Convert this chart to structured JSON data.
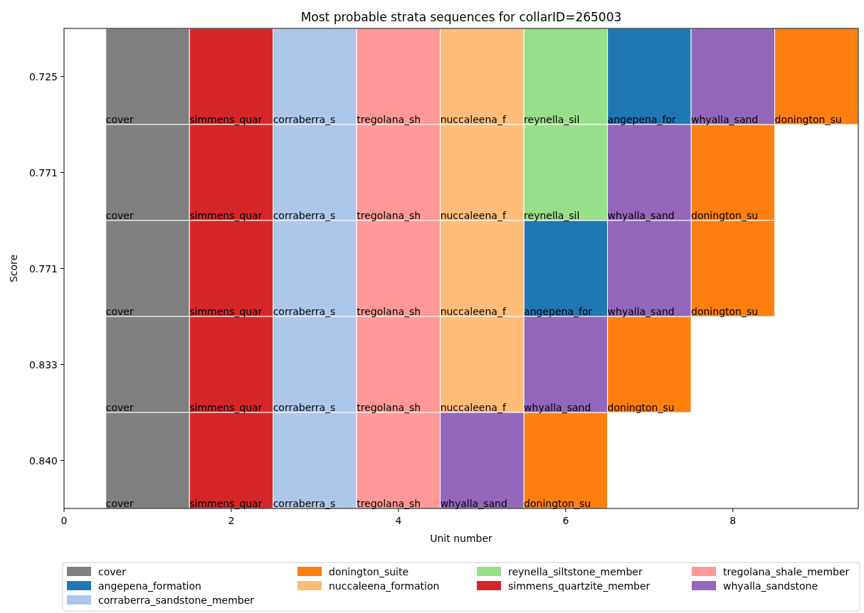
{
  "chart_data": {
    "type": "bar",
    "orientation": "horizontal",
    "title": "Most probable strata sequences for collarID=265003",
    "xlabel": "Unit number",
    "ylabel": "Score",
    "categories": [
      "0.725",
      "0.771",
      "0.771",
      "0.833",
      "0.840"
    ],
    "xlim": [
      0,
      9.5
    ],
    "xticks": [
      0,
      2,
      4,
      6,
      8
    ],
    "series": [
      {
        "name": "cover",
        "color": "#7f7f7f",
        "values": [
          1,
          1,
          1,
          1,
          1
        ],
        "base": [
          0.5,
          0.5,
          0.5,
          0.5,
          0.5
        ],
        "value_labels": [
          "cover",
          "cover",
          "cover",
          "cover",
          "cover"
        ]
      },
      {
        "name": "angepena_formation",
        "color": "#1f77b4",
        "values": [
          1,
          null,
          1,
          null,
          null
        ],
        "base": [
          6.5,
          null,
          5.5,
          null,
          null
        ],
        "value_labels": [
          "angepena_for",
          null,
          "angepena_for",
          null,
          null
        ]
      },
      {
        "name": "corraberra_sandstone_member",
        "color": "#aec7e8",
        "values": [
          1,
          1,
          1,
          1,
          1
        ],
        "base": [
          2.5,
          2.5,
          2.5,
          2.5,
          2.5
        ],
        "value_labels": [
          "corraberra_s",
          "corraberra_s",
          "corraberra_s",
          "corraberra_s",
          "corraberra_s"
        ]
      },
      {
        "name": "donington_suite",
        "color": "#ff7f0e",
        "values": [
          1,
          1,
          1,
          1,
          1
        ],
        "base": [
          8.5,
          7.5,
          7.5,
          6.5,
          5.5
        ],
        "value_labels": [
          "donington_su",
          "donington_su",
          "donington_su",
          "donington_su",
          "donington_su"
        ]
      },
      {
        "name": "nuccaleena_formation",
        "color": "#ffbb78",
        "values": [
          1,
          1,
          1,
          1,
          null
        ],
        "base": [
          4.5,
          4.5,
          4.5,
          4.5,
          null
        ],
        "value_labels": [
          "nuccaleena_f",
          "nuccaleena_f",
          "nuccaleena_f",
          "nuccaleena_f",
          null
        ]
      },
      {
        "name": "reynella_siltstone_member",
        "color": "#98df8a",
        "values": [
          1,
          1,
          null,
          null,
          null
        ],
        "base": [
          5.5,
          5.5,
          null,
          null,
          null
        ],
        "value_labels": [
          "reynella_sil",
          "reynella_sil",
          null,
          null,
          null
        ]
      },
      {
        "name": "simmens_quartzite_member",
        "color": "#d62728",
        "values": [
          1,
          1,
          1,
          1,
          1
        ],
        "base": [
          1.5,
          1.5,
          1.5,
          1.5,
          1.5
        ],
        "value_labels": [
          "simmens_quar",
          "simmens_quar",
          "simmens_quar",
          "simmens_quar",
          "simmens_quar"
        ]
      },
      {
        "name": "tregolana_shale_member",
        "color": "#ff9896",
        "values": [
          1,
          1,
          1,
          1,
          1
        ],
        "base": [
          3.5,
          3.5,
          3.5,
          3.5,
          3.5
        ],
        "value_labels": [
          "tregolana_sh",
          "tregolana_sh",
          "tregolana_sh",
          "tregolana_sh",
          "tregolana_sh"
        ]
      },
      {
        "name": "whyalla_sandstone",
        "color": "#9467bd",
        "values": [
          1,
          1,
          1,
          1,
          1
        ],
        "base": [
          7.5,
          6.5,
          6.5,
          5.5,
          4.5
        ],
        "value_labels": [
          "whyalla_sand",
          "whyalla_sand",
          "whyalla_sand",
          "whyalla_sand",
          "whyalla_sand"
        ]
      }
    ],
    "legend": "bottom"
  }
}
